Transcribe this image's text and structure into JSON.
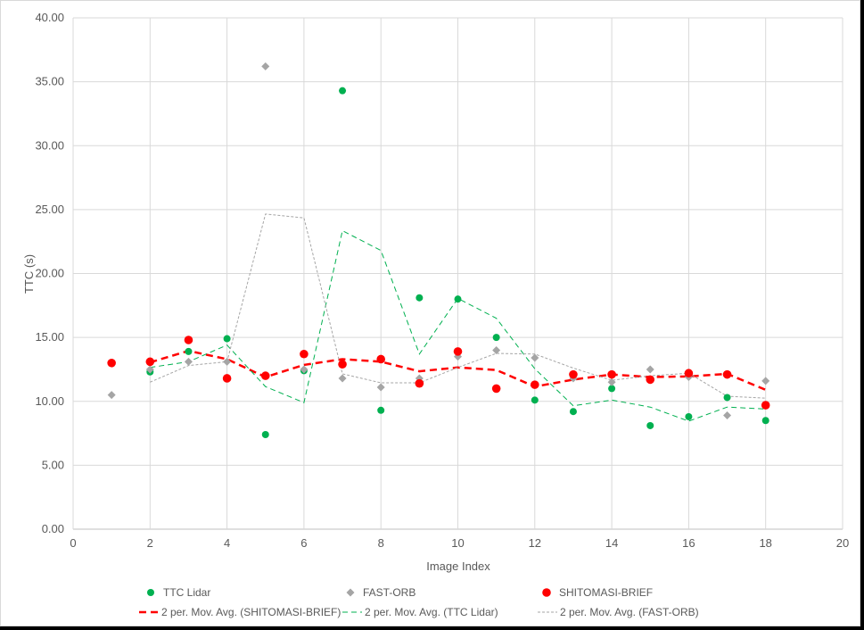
{
  "chart_data": {
    "type": "scatter",
    "title": "",
    "xlabel": "Image Index",
    "ylabel": "TTC (s)",
    "xlim": [
      0,
      20
    ],
    "ylim": [
      0,
      40
    ],
    "x_ticks": [
      "0",
      "2",
      "4",
      "6",
      "8",
      "10",
      "12",
      "14",
      "16",
      "18",
      "20"
    ],
    "y_ticks": [
      "0.00",
      "5.00",
      "10.00",
      "15.00",
      "20.00",
      "25.00",
      "30.00",
      "35.00",
      "40.00"
    ],
    "grid": true,
    "legend_position": "bottom",
    "series": [
      {
        "name": "TTC Lidar",
        "marker": "circle",
        "color": "#00b050",
        "x": [
          1,
          2,
          3,
          4,
          5,
          6,
          7,
          8,
          9,
          10,
          11,
          12,
          13,
          14,
          15,
          16,
          17,
          18
        ],
        "y": [
          13.0,
          12.3,
          13.9,
          14.9,
          7.4,
          12.4,
          34.3,
          9.3,
          18.1,
          18.0,
          15.0,
          10.1,
          9.2,
          11.0,
          8.1,
          8.8,
          10.3,
          8.5
        ]
      },
      {
        "name": "FAST-ORB",
        "marker": "diamond",
        "color": "#a5a5a5",
        "x": [
          1,
          2,
          3,
          4,
          5,
          6,
          7,
          8,
          9,
          10,
          11,
          12,
          13,
          14,
          15,
          16,
          17,
          18
        ],
        "y": [
          10.5,
          12.5,
          13.1,
          13.1,
          36.2,
          12.5,
          11.8,
          11.1,
          11.8,
          13.5,
          14.0,
          13.4,
          11.8,
          11.5,
          12.5,
          11.9,
          8.9,
          11.6
        ]
      },
      {
        "name": "SHITOMASI-BRIEF",
        "marker": "circle",
        "color": "#ff0000",
        "x": [
          1,
          2,
          3,
          4,
          5,
          6,
          7,
          8,
          9,
          10,
          11,
          12,
          13,
          14,
          15,
          16,
          17,
          18
        ],
        "y": [
          13.0,
          13.1,
          14.8,
          11.8,
          12.0,
          13.7,
          12.9,
          13.3,
          11.4,
          13.9,
          11.0,
          11.3,
          12.1,
          12.1,
          11.7,
          12.2,
          12.1,
          9.7
        ]
      },
      {
        "name": "2 per. Mov. Avg. (SHITOMASI-BRIEF)",
        "type": "line",
        "dash": "long",
        "width": 2.5,
        "color": "#ff0000",
        "x": [
          2,
          3,
          4,
          5,
          6,
          7,
          8,
          9,
          10,
          11,
          12,
          13,
          14,
          15,
          16,
          17,
          18
        ],
        "y": [
          13.05,
          13.95,
          13.3,
          11.9,
          12.85,
          13.3,
          13.1,
          12.35,
          12.65,
          12.45,
          11.15,
          11.7,
          12.1,
          11.9,
          11.95,
          12.15,
          10.9
        ]
      },
      {
        "name": "2 per. Mov. Avg. (TTC Lidar)",
        "type": "line",
        "dash": "medium",
        "width": 1,
        "color": "#00b050",
        "x": [
          2,
          3,
          4,
          5,
          6,
          7,
          8,
          9,
          10,
          11,
          12,
          13,
          14,
          15,
          16,
          17,
          18
        ],
        "y": [
          12.65,
          13.1,
          14.4,
          11.15,
          9.9,
          23.35,
          21.8,
          13.7,
          18.05,
          16.5,
          12.55,
          9.65,
          10.1,
          9.55,
          8.45,
          9.55,
          9.4
        ]
      },
      {
        "name": "2 per. Mov. Avg. (FAST-ORB)",
        "type": "line",
        "dash": "short",
        "width": 1,
        "color": "#a5a5a5",
        "x": [
          2,
          3,
          4,
          5,
          6,
          7,
          8,
          9,
          10,
          11,
          12,
          13,
          14,
          15,
          16,
          17,
          18
        ],
        "y": [
          11.5,
          12.8,
          13.1,
          24.65,
          24.35,
          12.15,
          11.45,
          11.45,
          12.65,
          13.75,
          13.7,
          12.6,
          11.65,
          12.0,
          12.2,
          10.4,
          10.25
        ]
      }
    ]
  }
}
